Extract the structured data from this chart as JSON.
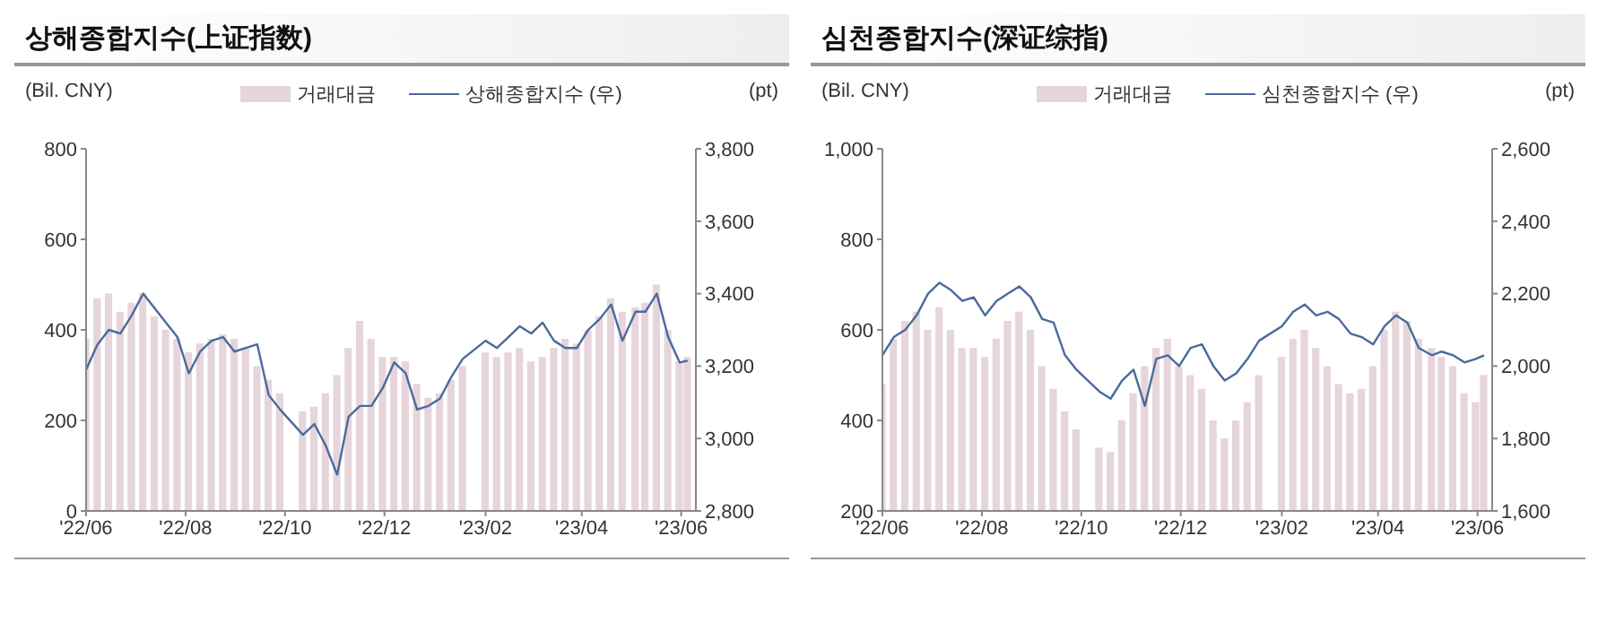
{
  "chart_data": [
    {
      "type": "bar",
      "title": "상해종합지수(上证指数)",
      "ylabel": "(Bil. CNY)",
      "y2label": "(pt)",
      "legend": "top",
      "grid": false,
      "x": [
        "2022-06-01",
        "2022-06-08",
        "2022-06-15",
        "2022-06-22",
        "2022-06-29",
        "2022-07-06",
        "2022-07-13",
        "2022-07-20",
        "2022-07-27",
        "2022-08-03",
        "2022-08-10",
        "2022-08-17",
        "2022-08-24",
        "2022-08-31",
        "2022-09-07",
        "2022-09-14",
        "2022-09-21",
        "2022-09-28",
        "2022-10-12",
        "2022-10-19",
        "2022-10-26",
        "2022-11-02",
        "2022-11-09",
        "2022-11-16",
        "2022-11-23",
        "2022-11-30",
        "2022-12-07",
        "2022-12-14",
        "2022-12-21",
        "2022-12-28",
        "2023-01-04",
        "2023-01-11",
        "2023-01-18",
        "2023-02-01",
        "2023-02-08",
        "2023-02-15",
        "2023-02-22",
        "2023-03-01",
        "2023-03-08",
        "2023-03-15",
        "2023-03-22",
        "2023-03-29",
        "2023-04-05",
        "2023-04-12",
        "2023-04-19",
        "2023-04-26",
        "2023-05-04",
        "2023-05-10",
        "2023-05-17",
        "2023-05-24",
        "2023-05-31",
        "2023-06-05"
      ],
      "series": [
        {
          "name": "거래대금",
          "color": "#e6d5da",
          "values": [
            380,
            470,
            480,
            440,
            460,
            480,
            430,
            400,
            380,
            350,
            370,
            380,
            390,
            380,
            360,
            320,
            290,
            260,
            220,
            230,
            260,
            300,
            360,
            420,
            380,
            340,
            340,
            330,
            280,
            250,
            260,
            290,
            320,
            350,
            340,
            350,
            360,
            330,
            340,
            360,
            380,
            370,
            400,
            430,
            470,
            440,
            450,
            460,
            500,
            400,
            330,
            340
          ]
        },
        {
          "name": "상해종합지수 (우)",
          "type": "line",
          "axis": "y2",
          "color": "#4a6a9c",
          "values": [
            3190,
            3260,
            3300,
            3290,
            3340,
            3400,
            3360,
            3320,
            3280,
            3180,
            3240,
            3270,
            3280,
            3240,
            3250,
            3260,
            3120,
            3080,
            3010,
            3040,
            2980,
            2900,
            3060,
            3090,
            3090,
            3140,
            3210,
            3180,
            3080,
            3090,
            3110,
            3170,
            3220,
            3270,
            3250,
            3280,
            3310,
            3290,
            3320,
            3270,
            3250,
            3250,
            3300,
            3330,
            3370,
            3270,
            3350,
            3350,
            3400,
            3280,
            3210,
            3215
          ]
        }
      ],
      "ylim": [
        0,
        800
      ],
      "yticks": [
        0,
        200,
        400,
        600,
        800
      ],
      "y2lim": [
        2800,
        3800
      ],
      "y2ticks": [
        {
          "value": 2800,
          "label": "2,800"
        },
        {
          "value": 3000,
          "label": "3,000"
        },
        {
          "value": 3200,
          "label": "3,200"
        },
        {
          "value": 3400,
          "label": "3,400"
        },
        {
          "value": 3600,
          "label": "3,600"
        },
        {
          "value": 3800,
          "label": "3,800"
        }
      ],
      "xlim": [
        "2022-06-01",
        "2023-06-10"
      ],
      "xticks": [
        {
          "value": "2022-06-01",
          "label": "'22/06"
        },
        {
          "value": "2022-08-01",
          "label": "'22/08"
        },
        {
          "value": "2022-10-01",
          "label": "'22/10"
        },
        {
          "value": "2022-12-01",
          "label": "'22/12"
        },
        {
          "value": "2023-02-01",
          "label": "'23/02"
        },
        {
          "value": "2023-04-01",
          "label": "'23/04"
        },
        {
          "value": "2023-06-01",
          "label": "'23/06"
        }
      ]
    },
    {
      "type": "bar",
      "title": "심천종합지수(深证综指)",
      "ylabel": "(Bil. CNY)",
      "y2label": "(pt)",
      "legend": "top",
      "grid": false,
      "x": [
        "2022-06-01",
        "2022-06-08",
        "2022-06-15",
        "2022-06-22",
        "2022-06-29",
        "2022-07-06",
        "2022-07-13",
        "2022-07-20",
        "2022-07-27",
        "2022-08-03",
        "2022-08-10",
        "2022-08-17",
        "2022-08-24",
        "2022-08-31",
        "2022-09-07",
        "2022-09-14",
        "2022-09-21",
        "2022-09-28",
        "2022-10-12",
        "2022-10-19",
        "2022-10-26",
        "2022-11-02",
        "2022-11-09",
        "2022-11-16",
        "2022-11-23",
        "2022-11-30",
        "2022-12-07",
        "2022-12-14",
        "2022-12-21",
        "2022-12-28",
        "2023-01-04",
        "2023-01-11",
        "2023-01-18",
        "2023-02-01",
        "2023-02-08",
        "2023-02-15",
        "2023-02-22",
        "2023-03-01",
        "2023-03-08",
        "2023-03-15",
        "2023-03-22",
        "2023-03-29",
        "2023-04-05",
        "2023-04-12",
        "2023-04-19",
        "2023-04-26",
        "2023-05-04",
        "2023-05-10",
        "2023-05-17",
        "2023-05-24",
        "2023-05-31",
        "2023-06-05"
      ],
      "series": [
        {
          "name": "거래대금",
          "color": "#e6d5da",
          "values": [
            480,
            580,
            620,
            640,
            600,
            650,
            600,
            560,
            560,
            540,
            580,
            620,
            640,
            600,
            520,
            470,
            420,
            380,
            340,
            330,
            400,
            460,
            520,
            560,
            580,
            520,
            500,
            470,
            400,
            360,
            400,
            440,
            500,
            540,
            580,
            600,
            560,
            520,
            480,
            460,
            470,
            520,
            600,
            640,
            620,
            580,
            560,
            540,
            520,
            460,
            440,
            500
          ]
        },
        {
          "name": "심천종합지수 (우)",
          "type": "line",
          "axis": "y2",
          "color": "#4a6a9c",
          "values": [
            2030,
            2080,
            2100,
            2140,
            2200,
            2230,
            2210,
            2180,
            2190,
            2140,
            2180,
            2200,
            2220,
            2190,
            2130,
            2120,
            2030,
            1990,
            1930,
            1910,
            1960,
            1990,
            1890,
            2020,
            2030,
            2000,
            2050,
            2060,
            2000,
            1960,
            1980,
            2020,
            2070,
            2110,
            2150,
            2170,
            2140,
            2150,
            2130,
            2090,
            2080,
            2060,
            2110,
            2140,
            2120,
            2050,
            2030,
            2040,
            2030,
            2010,
            2020,
            2030
          ]
        }
      ],
      "ylim": [
        200,
        1000
      ],
      "yticks": [
        200,
        400,
        600,
        800,
        {
          "value": 1000,
          "label": "1,000"
        }
      ],
      "y2lim": [
        1600,
        2600
      ],
      "y2ticks": [
        {
          "value": 1600,
          "label": "1,600"
        },
        {
          "value": 1800,
          "label": "1,800"
        },
        {
          "value": 2000,
          "label": "2,000"
        },
        {
          "value": 2200,
          "label": "2,200"
        },
        {
          "value": 2400,
          "label": "2,400"
        },
        {
          "value": 2600,
          "label": "2,600"
        }
      ],
      "xlim": [
        "2022-06-01",
        "2023-06-10"
      ],
      "xticks": [
        {
          "value": "2022-06-01",
          "label": "'22/06"
        },
        {
          "value": "2022-08-01",
          "label": "'22/08"
        },
        {
          "value": "2022-10-01",
          "label": "'22/10"
        },
        {
          "value": "2022-12-01",
          "label": "'22/12"
        },
        {
          "value": "2023-02-01",
          "label": "'23/02"
        },
        {
          "value": "2023-04-01",
          "label": "'23/04"
        },
        {
          "value": "2023-06-01",
          "label": "'23/06"
        }
      ]
    }
  ]
}
